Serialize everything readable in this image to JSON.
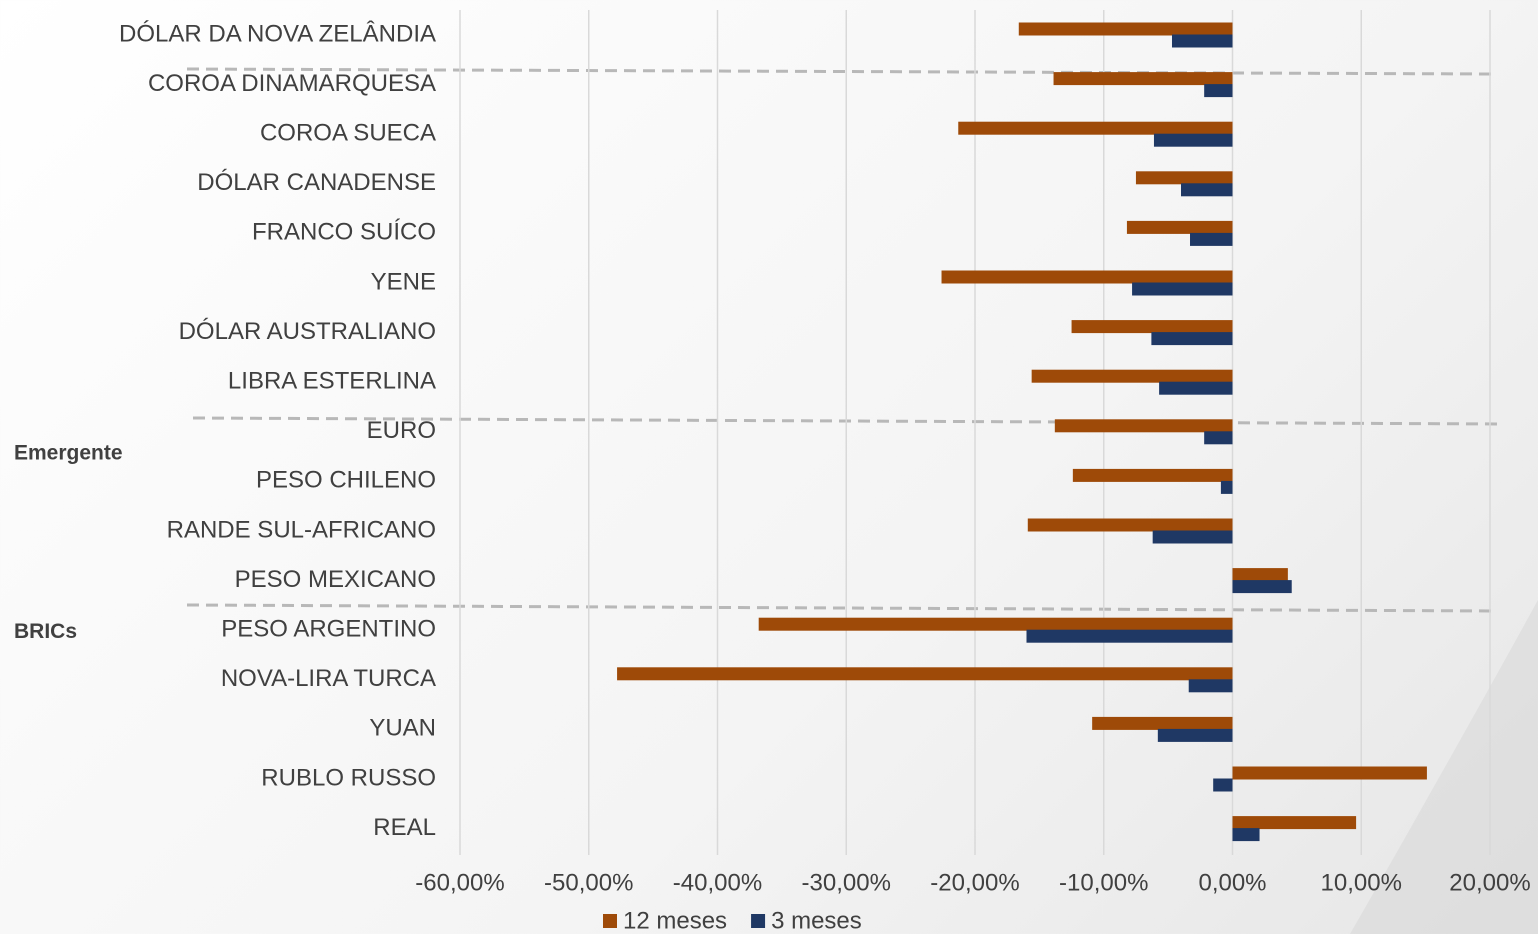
{
  "chart_data": {
    "type": "hbar",
    "categories": [
      "DÓLAR DA NOVA ZELÂNDIA",
      "COROA DINAMARQUESA",
      "COROA SUECA",
      "DÓLAR CANADENSE",
      "FRANCO SUÍCO",
      "YENE",
      "DÓLAR AUSTRALIANO",
      "LIBRA ESTERLINA",
      "EURO",
      "PESO CHILENO",
      "RANDE SUL-AFRICANO",
      "PESO MEXICANO",
      "PESO ARGENTINO",
      "NOVA-LIRA TURCA",
      "YUAN",
      "RUBLO RUSSO",
      "REAL"
    ],
    "series": [
      {
        "name": "12 meses",
        "color": "#9e4a08",
        "values": [
          -16.6,
          -13.9,
          -21.3,
          -7.5,
          -8.2,
          -22.6,
          -12.5,
          -15.6,
          -13.8,
          -12.4,
          -15.9,
          4.3,
          -36.8,
          -47.8,
          -10.9,
          15.1,
          9.6
        ]
      },
      {
        "name": "3 meses",
        "color": "#1f3864",
        "values": [
          -4.7,
          -2.2,
          -6.1,
          -4.0,
          -3.3,
          -7.8,
          -6.3,
          -5.7,
          -2.2,
          -0.9,
          -6.2,
          4.6,
          -16.0,
          -3.4,
          -5.8,
          -1.5,
          2.1
        ]
      }
    ],
    "group_labels": [
      "Emergente",
      "BRICs"
    ],
    "xlim": [
      -60,
      20
    ],
    "xticks": [
      {
        "value": -60,
        "label": "-60,00%"
      },
      {
        "value": -50,
        "label": "-50,00%"
      },
      {
        "value": -40,
        "label": "-40,00%"
      },
      {
        "value": -30,
        "label": "-30,00%"
      },
      {
        "value": -20,
        "label": "-20,00%"
      },
      {
        "value": -10,
        "label": "-10,00%"
      },
      {
        "value": 0,
        "label": "0,00%"
      },
      {
        "value": 10,
        "label": "10,00%"
      },
      {
        "value": 20,
        "label": "20,00%"
      }
    ],
    "grid": true,
    "legend": "bottom"
  }
}
